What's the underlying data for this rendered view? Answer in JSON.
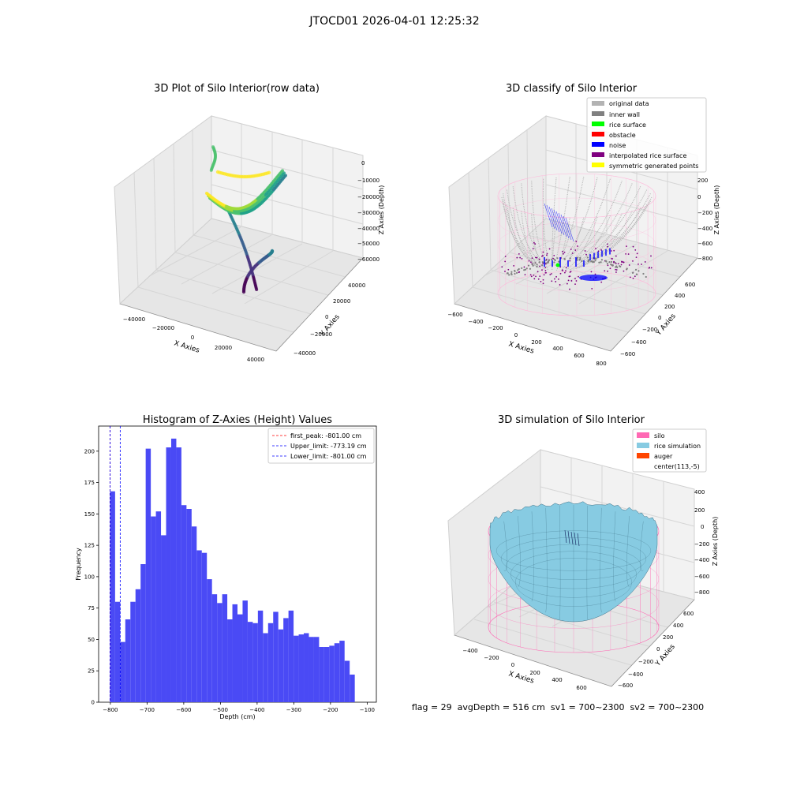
{
  "suptitle": "JTOCD01 2026-04-01 12:25:32",
  "colors": {
    "pane_face": "#f2f2f2",
    "pane_grid": "#d6d6d6",
    "histogram_bar": "#4a4af5",
    "silo": "#ff69b4",
    "rice_simulation": "#87cbe2",
    "auger": "#ff4500",
    "original_data": "#b3b3b3",
    "inner_wall": "#808080",
    "rice_surface": "#00ff00",
    "obstacle": "#ff0000",
    "noise": "#0000ff",
    "interpolated_rice_surface": "#800080",
    "symmetric_generated_points": "#ffff00"
  },
  "chart_data": [
    {
      "type": "scatter",
      "projection": "3d",
      "title": "3D Plot of Silo Interior(row data)",
      "xlabel": "X Axies",
      "ylabel": "Y Axies",
      "zlabel": "Z Axies (Depth)",
      "x_ticks": [
        "−40000",
        "−20000",
        "0",
        "20000",
        "40000"
      ],
      "y_ticks": [
        "−40000",
        "−20000",
        "0",
        "20000",
        "40000"
      ],
      "z_ticks": [
        "0",
        "−10000",
        "−20000",
        "−30000",
        "−40000",
        "−50000",
        "−60000"
      ],
      "xlim": [
        -48000,
        48000
      ],
      "ylim": [
        -48000,
        48000
      ],
      "zlim": [
        -65000,
        2000
      ],
      "colormap": "viridis",
      "grid": true
    },
    {
      "type": "scatter",
      "projection": "3d",
      "title": "3D classify of Silo Interior",
      "xlabel": "X Axies",
      "ylabel": "Y Axies",
      "zlabel": "Z Axies (Depth)",
      "x_ticks": [
        "−600",
        "−400",
        "−200",
        "0",
        "200",
        "400",
        "600",
        "800"
      ],
      "y_ticks": [
        "−600",
        "−400",
        "−200",
        "0",
        "200",
        "400",
        "600"
      ],
      "z_ticks": [
        "200",
        "0",
        "−200",
        "−400",
        "−600",
        "−800"
      ],
      "xlim": [
        -650,
        850
      ],
      "ylim": [
        -650,
        650
      ],
      "zlim": [
        -950,
        300
      ],
      "legend": [
        "original data",
        "inner wall",
        "rice surface",
        "obstacle",
        "noise",
        "interpolated rice surface",
        "symmetric generated points"
      ],
      "legend_position": "top-right",
      "grid": true
    },
    {
      "type": "bar",
      "title": "Histogram of Z-Axies (Height) Values",
      "xlabel": "Depth (cm)",
      "ylabel": "Frequency",
      "x_ticks": [
        "−800",
        "−700",
        "−600",
        "−500",
        "−400",
        "−300",
        "−200",
        "−100"
      ],
      "y_ticks": [
        "0",
        "25",
        "50",
        "75",
        "100",
        "125",
        "150",
        "175",
        "200"
      ],
      "bin_start": -801,
      "bin_width": 13.9,
      "values": [
        168,
        80,
        48,
        66,
        80,
        90,
        110,
        202,
        148,
        152,
        133,
        203,
        210,
        203,
        157,
        154,
        140,
        121,
        119,
        98,
        86,
        79,
        86,
        66,
        78,
        70,
        81,
        64,
        63,
        73,
        55,
        63,
        72,
        58,
        67,
        73,
        53,
        54,
        55,
        52,
        52,
        44,
        44,
        45,
        47,
        49,
        33,
        22
      ],
      "xlim": [
        -832,
        -75
      ],
      "ylim": [
        0,
        220
      ],
      "lines": [
        {
          "label": "first_peak: -801.00 cm",
          "x": -801.0,
          "color": "#ff0000"
        },
        {
          "label": "Upper_limit: -773.19 cm",
          "x": -773.19,
          "color": "#0000ff"
        },
        {
          "label": "Lower_limit: -801.00 cm",
          "x": -801.0,
          "color": "#0000ff"
        }
      ],
      "legend_position": "top-right",
      "grid": false
    },
    {
      "type": "surface",
      "projection": "3d",
      "title": "3D simulation of Silo Interior",
      "xlabel": "X Axies",
      "ylabel": "Y Axies",
      "zlabel": "Z Axies (Depth)",
      "x_ticks": [
        "−400",
        "−200",
        "0",
        "200",
        "400",
        "600"
      ],
      "y_ticks": [
        "−600",
        "−400",
        "−200",
        "0",
        "200",
        "400",
        "600"
      ],
      "z_ticks": [
        "400",
        "200",
        "0",
        "−200",
        "−400",
        "−600",
        "−800"
      ],
      "xlim": [
        -520,
        760
      ],
      "ylim": [
        -700,
        700
      ],
      "zlim": [
        -950,
        500
      ],
      "legend": [
        "silo",
        "rice simulation",
        "auger",
        "center(113,-5)"
      ],
      "legend_position": "top-right",
      "grid": true
    }
  ],
  "status_line": "flag = 29  avgDepth = 516 cm  sv1 = 700~2300  sv2 = 700~2300"
}
